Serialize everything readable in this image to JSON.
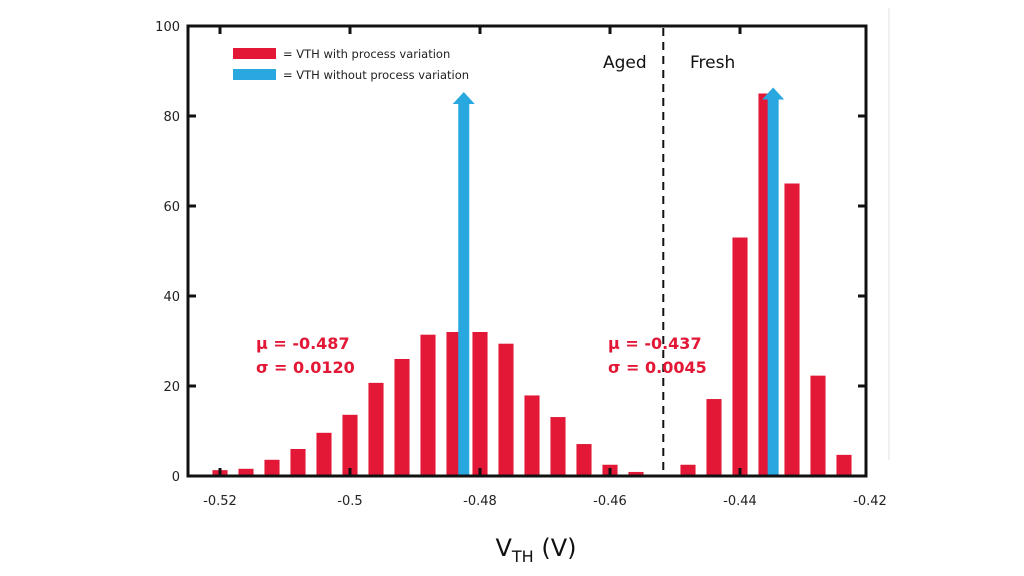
{
  "chart_data": {
    "type": "bar",
    "title": "",
    "xlabel": "V_TH (V)",
    "xlabel_main": "V",
    "xlabel_sub": "TH",
    "xlabel_unit": " (V)",
    "ylabel": "",
    "xlim": [
      -0.5245,
      -0.4205
    ],
    "ylim": [
      0,
      100
    ],
    "x_ticks": [
      -0.52,
      -0.5,
      -0.48,
      -0.46,
      -0.44,
      -0.42
    ],
    "x_tick_labels": [
      "-0.52",
      "-0.5",
      "-0.48",
      "-0.46",
      "-0.44",
      "-0.42"
    ],
    "y_ticks": [
      0,
      20,
      40,
      60,
      80,
      100
    ],
    "y_tick_labels": [
      "0",
      "20",
      "40",
      "60",
      "80",
      "100"
    ],
    "bin_width": 0.004,
    "grid": false,
    "legend_position": "top-left",
    "legend": [
      {
        "label": "= VTH with process variation",
        "color": "#E31837"
      },
      {
        "label": "= VTH without process variation",
        "color": "#29A8E0"
      }
    ],
    "series": [
      {
        "name": "VTH with process variation (Aged)",
        "color": "#E31837",
        "x": [
          -0.52,
          -0.516,
          -0.512,
          -0.508,
          -0.504,
          -0.5,
          -0.496,
          -0.492,
          -0.488,
          -0.484,
          -0.48,
          -0.476,
          -0.472,
          -0.468,
          -0.464,
          -0.46,
          -0.456
        ],
        "values": [
          1.3,
          1.6,
          3.6,
          6.0,
          9.6,
          13.6,
          20.7,
          26.0,
          31.4,
          32.0,
          32.0,
          29.4,
          17.9,
          13.1,
          7.1,
          2.5,
          0.9
        ]
      },
      {
        "name": "VTH with process variation (Fresh)",
        "color": "#E31837",
        "x": [
          -0.448,
          -0.444,
          -0.44,
          -0.436,
          -0.432,
          -0.428,
          -0.424
        ],
        "values": [
          2.5,
          17.1,
          53.0,
          85.0,
          65.0,
          22.3,
          4.7
        ]
      },
      {
        "name": "VTH without process variation",
        "color": "#29A8E0",
        "type": "arrow",
        "x": [
          -0.4825,
          -0.4349
        ],
        "values": [
          84,
          85
        ]
      }
    ],
    "divider": {
      "x": -0.4518,
      "style": "dashed"
    },
    "annotations": [
      {
        "text": "Aged",
        "role": "region-left"
      },
      {
        "text": "Fresh",
        "role": "region-right"
      },
      {
        "text": "μ = -0.487",
        "role": "stat-aged-mean"
      },
      {
        "text": "σ = 0.0120",
        "role": "stat-aged-sigma"
      },
      {
        "text": "μ = -0.437",
        "role": "stat-fresh-mean"
      },
      {
        "text": "σ = 0.0045",
        "role": "stat-fresh-sigma"
      }
    ]
  }
}
